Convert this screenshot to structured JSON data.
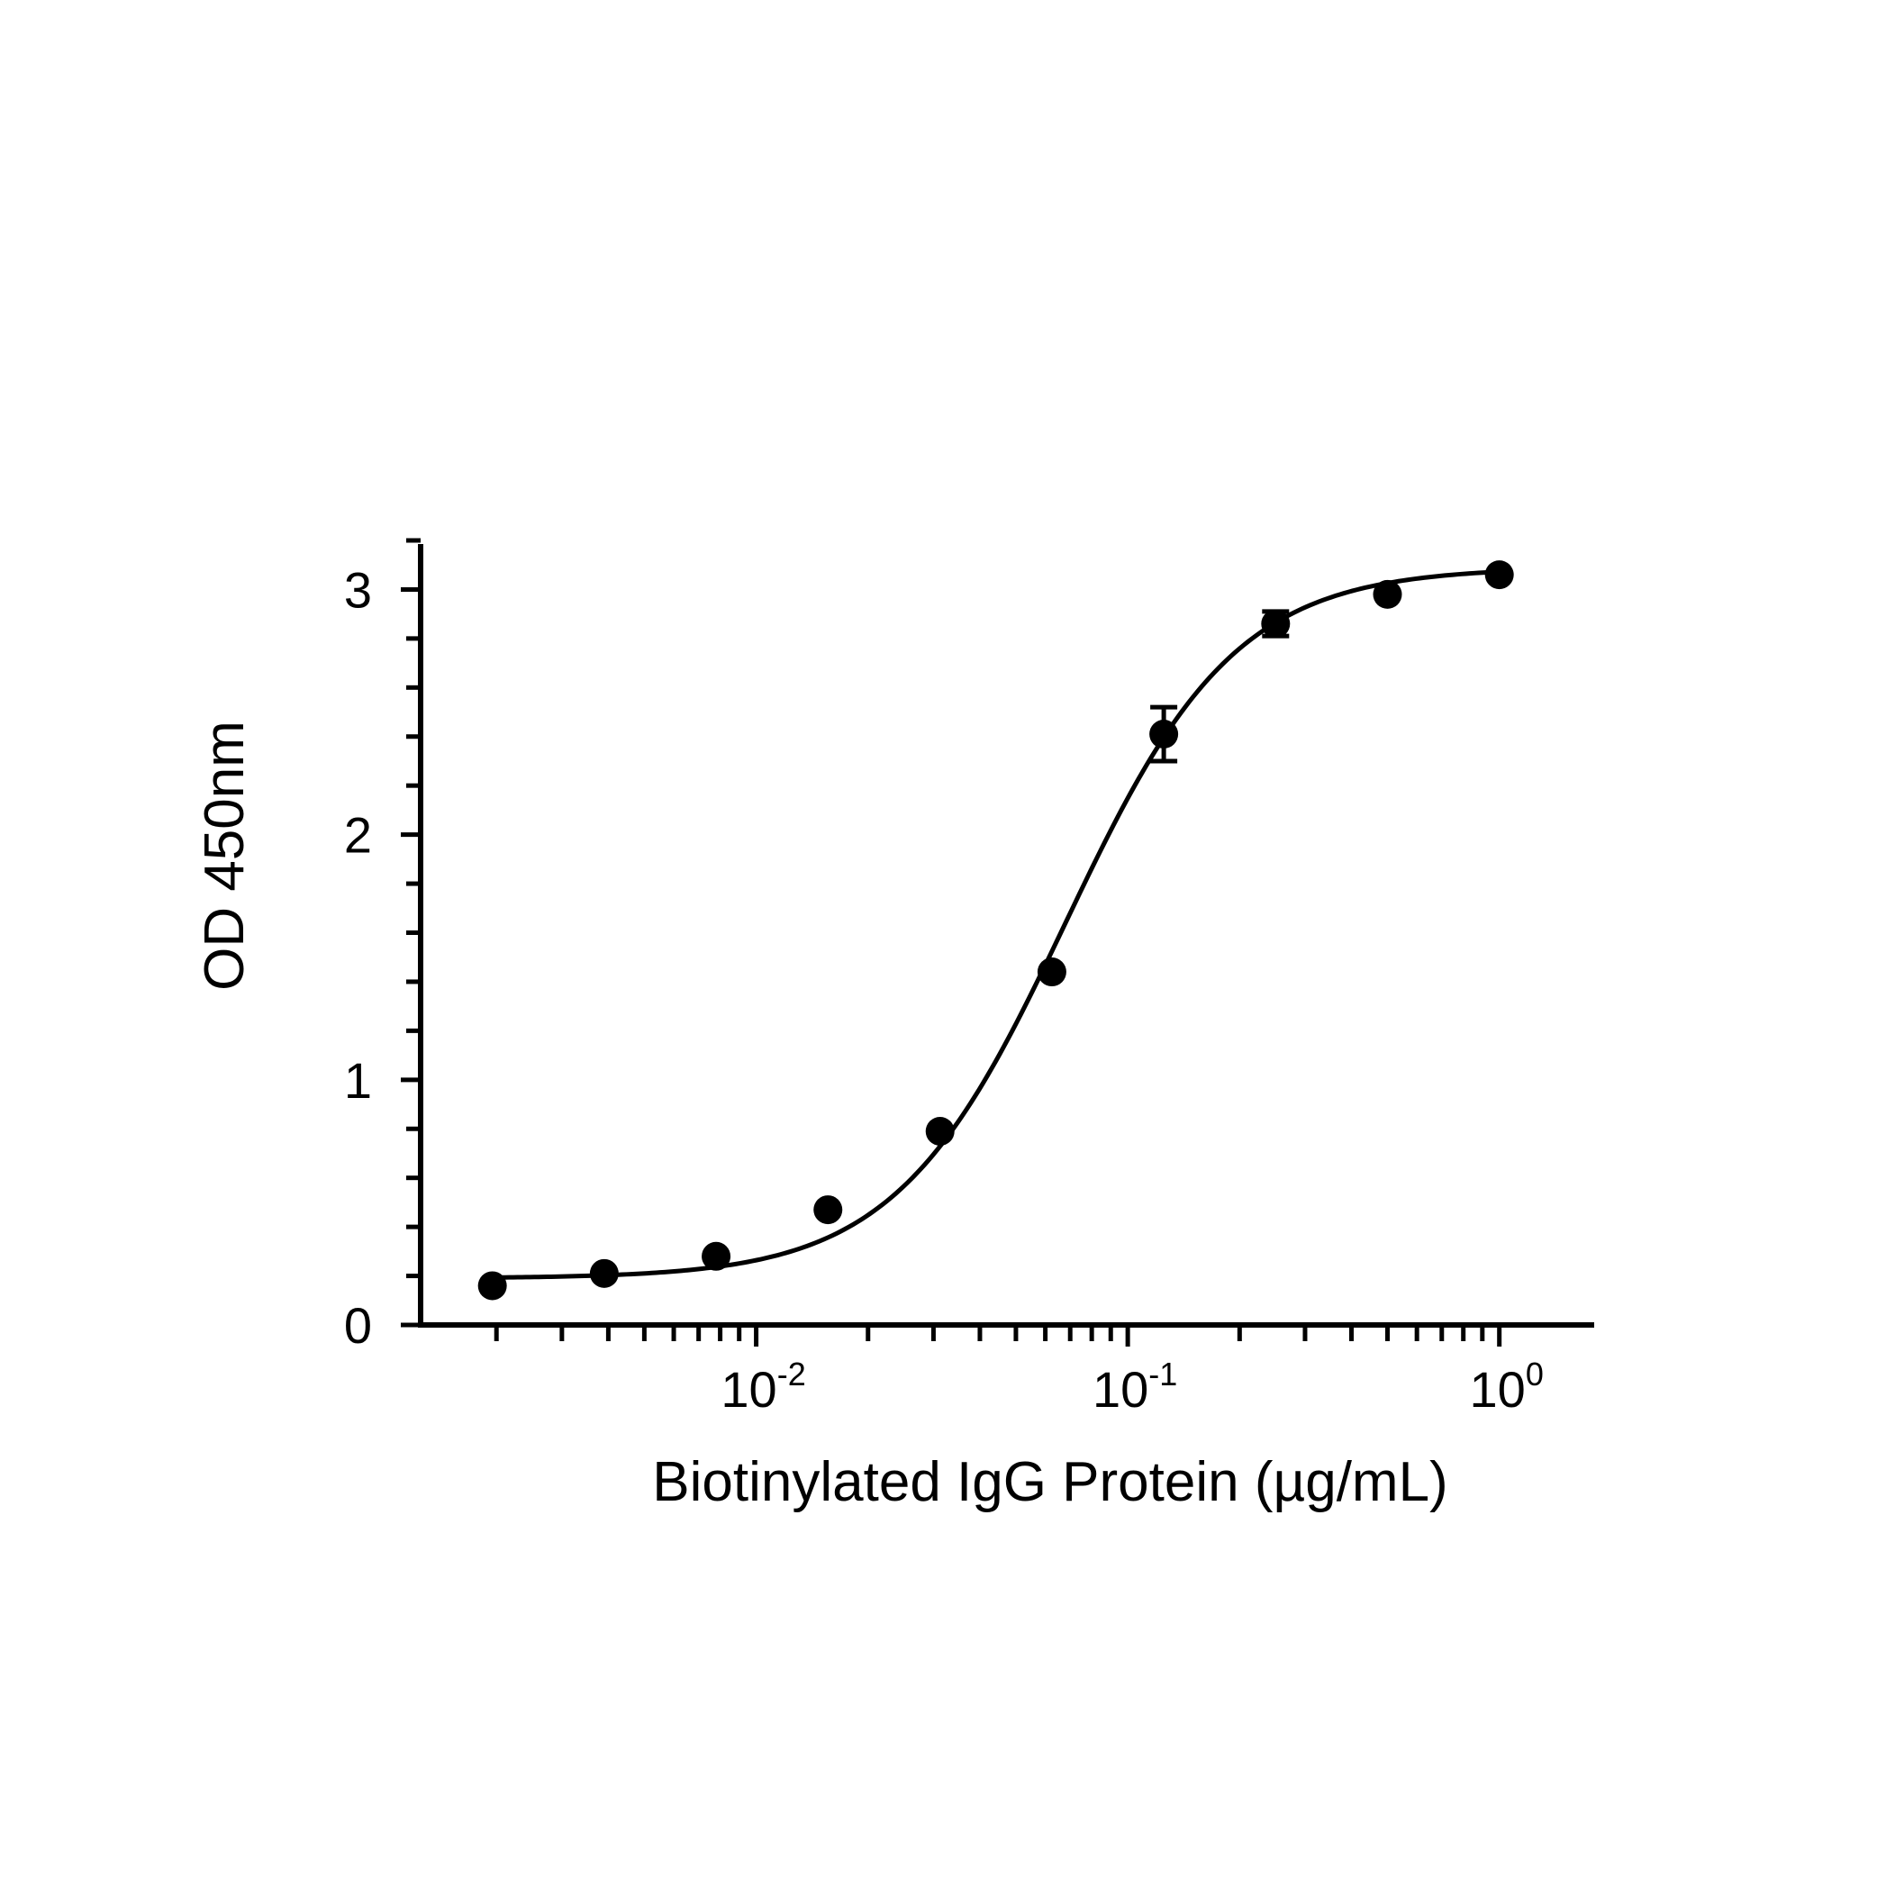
{
  "chart_data": {
    "type": "scatter",
    "xlabel": "Biotinylated IgG Protein (µg/mL)",
    "ylabel": "OD 450nm",
    "x_scale": "log",
    "xlim": [
      0.00125,
      1.8
    ],
    "ylim": [
      0,
      3.2
    ],
    "x_ticks": [
      {
        "value": 0.01,
        "base": "10",
        "exp": "-2"
      },
      {
        "value": 0.1,
        "base": "10",
        "exp": "-1"
      },
      {
        "value": 1,
        "base": "10",
        "exp": "0"
      }
    ],
    "y_ticks": [
      {
        "value": 0,
        "label": "0"
      },
      {
        "value": 1,
        "label": "1"
      },
      {
        "value": 2,
        "label": "2"
      },
      {
        "value": 3,
        "label": "3"
      }
    ],
    "grid": false,
    "legend": "none",
    "color": "#000000",
    "series": [
      {
        "points": [
          {
            "x": 0.00195,
            "y": 0.16,
            "err": 0.0
          },
          {
            "x": 0.0039,
            "y": 0.21,
            "err": 0.0
          },
          {
            "x": 0.0078,
            "y": 0.28,
            "err": 0.0
          },
          {
            "x": 0.0156,
            "y": 0.47,
            "err": 0.0
          },
          {
            "x": 0.03125,
            "y": 0.79,
            "err": 0.0
          },
          {
            "x": 0.0625,
            "y": 1.44,
            "err": 0.0
          },
          {
            "x": 0.125,
            "y": 2.41,
            "err": 0.11
          },
          {
            "x": 0.25,
            "y": 2.86,
            "err": 0.05
          },
          {
            "x": 0.5,
            "y": 2.98,
            "err": 0.0
          },
          {
            "x": 1.0,
            "y": 3.06,
            "err": 0.0
          }
        ],
        "fit": {
          "model": "4PL",
          "bottom": 0.19,
          "top": 3.09,
          "ec50": 0.068,
          "hill": 1.9
        }
      }
    ]
  }
}
